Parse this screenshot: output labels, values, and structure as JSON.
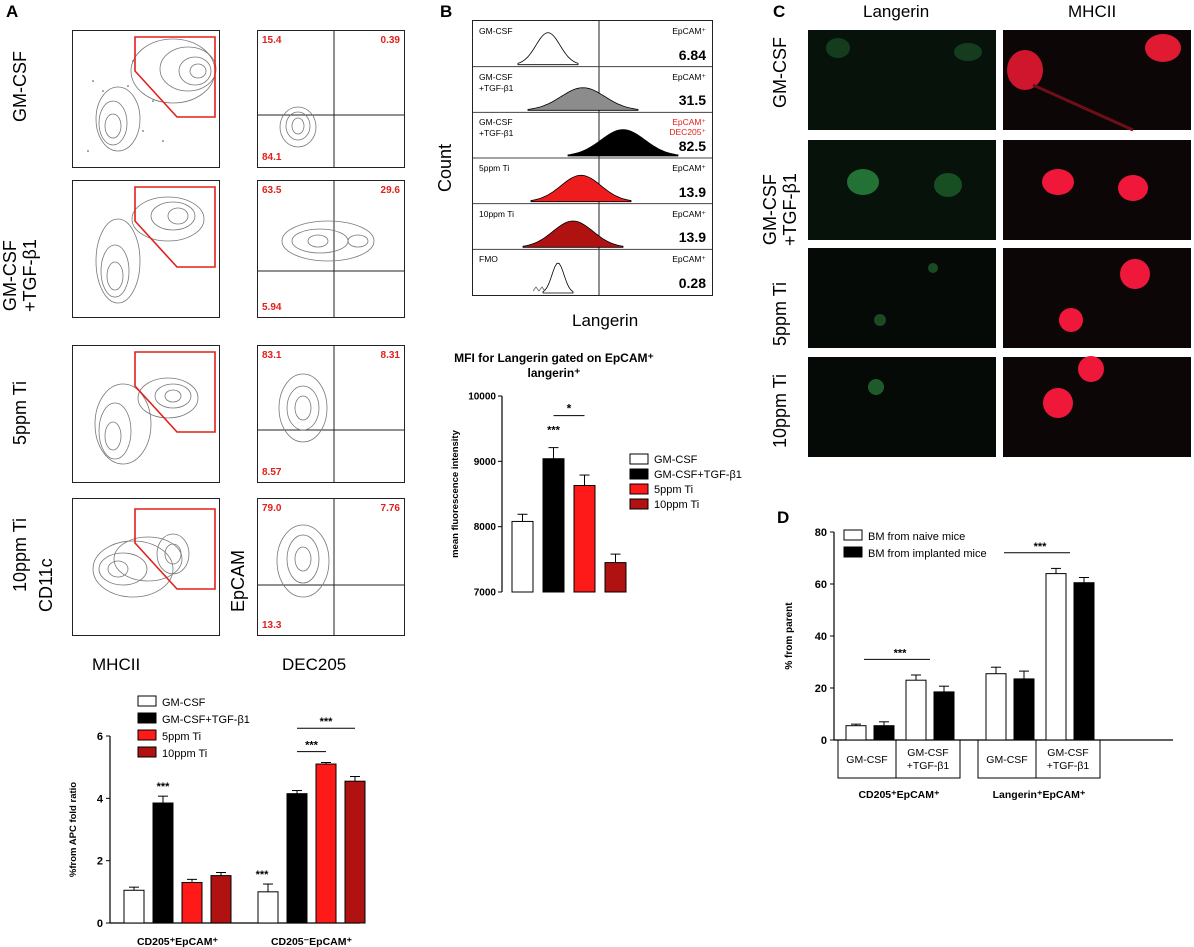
{
  "panels": {
    "a": "A",
    "b": "B",
    "c": "C",
    "d": "D"
  },
  "panel_a": {
    "row_labels": [
      "GM-CSF",
      "GM-CSF\n+TGF-β1",
      "5ppm Ti",
      "10ppm Ti"
    ],
    "y_axis_left": "CD11c",
    "y_axis_right": "EpCAM",
    "x_axis_left": "MHCII",
    "x_axis_right": "DEC205",
    "quadrants": [
      {
        "ul": "15.4",
        "ur": "0.39",
        "ll": "84.1"
      },
      {
        "ul": "63.5",
        "ur": "29.6",
        "ll": "5.94"
      },
      {
        "ul": "83.1",
        "ur": "8.31",
        "ll": "8.57"
      },
      {
        "ul": "79.0",
        "ur": "7.76",
        "ll": "13.3"
      }
    ]
  },
  "panel_b": {
    "y_axis": "Count",
    "x_axis": "Langerin",
    "rows": [
      {
        "label": "GM-CSF",
        "tag": "EpCAM⁺",
        "value": "6.84",
        "color": "#ffffff"
      },
      {
        "label": "GM-CSF\n+TGF-β1",
        "tag": "EpCAM⁺",
        "value": "31.5",
        "color": "#8c8c8c"
      },
      {
        "label": "GM-CSF\n+TGF-β1",
        "tag": "EpCAM⁺\nDEC205⁺",
        "value": "82.5",
        "color": "#000000",
        "tag_color": "#e0201a"
      },
      {
        "label": "5ppm Ti",
        "tag": "EpCAM⁺",
        "value": "13.9",
        "color": "#ee1c1c"
      },
      {
        "label": "10ppm Ti",
        "tag": "EpCAM⁺",
        "value": "13.9",
        "color": "#b01212"
      },
      {
        "label": "FMO",
        "tag": "EpCAM⁺",
        "value": "0.28",
        "color": "#ffffff"
      }
    ]
  },
  "legend_common": [
    "GM-CSF",
    "GM-CSF+TGF-β1",
    "5ppm Ti",
    "10ppm Ti"
  ],
  "legend_d": [
    "BM from naive mice",
    "BM from implanted mice"
  ],
  "colors": {
    "white": "#ffffff",
    "black": "#000000",
    "red": "#ff1a1a",
    "darkred": "#b01212",
    "gate": "#e0201a"
  },
  "panel_c": {
    "col_heads": [
      "Langerin",
      "MHCII"
    ],
    "row_labels": [
      "GM-CSF",
      "GM-CSF\n+TGF-β1",
      "5ppm Ti",
      "10ppm Ti"
    ]
  },
  "chart_data": [
    {
      "type": "bar",
      "title": "MFI for Langerin gated on EpCAM⁺ langerin⁺",
      "ylabel": "mean fluorescence intensity",
      "ylim": [
        7000,
        10000
      ],
      "yticks": [
        "7000",
        "8000",
        "9000",
        "10000"
      ],
      "series": [
        {
          "name": "GM-CSF",
          "values": [
            8080
          ],
          "err": [
            110
          ]
        },
        {
          "name": "GM-CSF+TGF-β1",
          "values": [
            9040
          ],
          "err": [
            170
          ]
        },
        {
          "name": "5ppm Ti",
          "values": [
            8630
          ],
          "err": [
            160
          ]
        },
        {
          "name": "10ppm Ti",
          "values": [
            7450
          ],
          "err": [
            130
          ]
        }
      ],
      "annotations": [
        "***",
        "*"
      ]
    },
    {
      "type": "bar",
      "ylabel": "%from APC fold ratio",
      "ylim": [
        0,
        6
      ],
      "yticks": [
        "0",
        "2",
        "4",
        "6"
      ],
      "categories": [
        "CD205⁺EpCAM⁺",
        "CD205⁻EpCAM⁺"
      ],
      "series": [
        {
          "name": "GM-CSF",
          "values": [
            1.05,
            1.0
          ],
          "err": [
            0.1,
            0.25
          ]
        },
        {
          "name": "GM-CSF+TGF-β1",
          "values": [
            3.85,
            4.15
          ],
          "err": [
            0.22,
            0.1
          ]
        },
        {
          "name": "5ppm Ti",
          "values": [
            1.3,
            5.1
          ],
          "err": [
            0.1,
            0.05
          ]
        },
        {
          "name": "10ppm Ti",
          "values": [
            1.52,
            4.55
          ],
          "err": [
            0.1,
            0.15
          ]
        }
      ],
      "annotations": [
        "***",
        "***",
        "***",
        "***"
      ]
    },
    {
      "type": "bar",
      "ylabel": "% from parent",
      "ylim": [
        0,
        80
      ],
      "yticks": [
        "0",
        "20",
        "40",
        "60",
        "80"
      ],
      "group_labels": [
        "CD205⁺EpCAM⁺",
        "Langerin⁺EpCAM⁺"
      ],
      "subgroup_labels": [
        "GM-CSF",
        "GM-CSF\n+TGF-β1"
      ],
      "series": [
        {
          "name": "BM from naive mice",
          "values": [
            5.5,
            23,
            25.5,
            64
          ],
          "err": [
            0.6,
            2,
            2.5,
            2
          ]
        },
        {
          "name": "BM from implanted mice",
          "values": [
            5.5,
            18.5,
            23.5,
            60.5
          ],
          "err": [
            1.5,
            2.2,
            3,
            2
          ]
        }
      ],
      "annotations": [
        "***",
        "***"
      ]
    }
  ]
}
